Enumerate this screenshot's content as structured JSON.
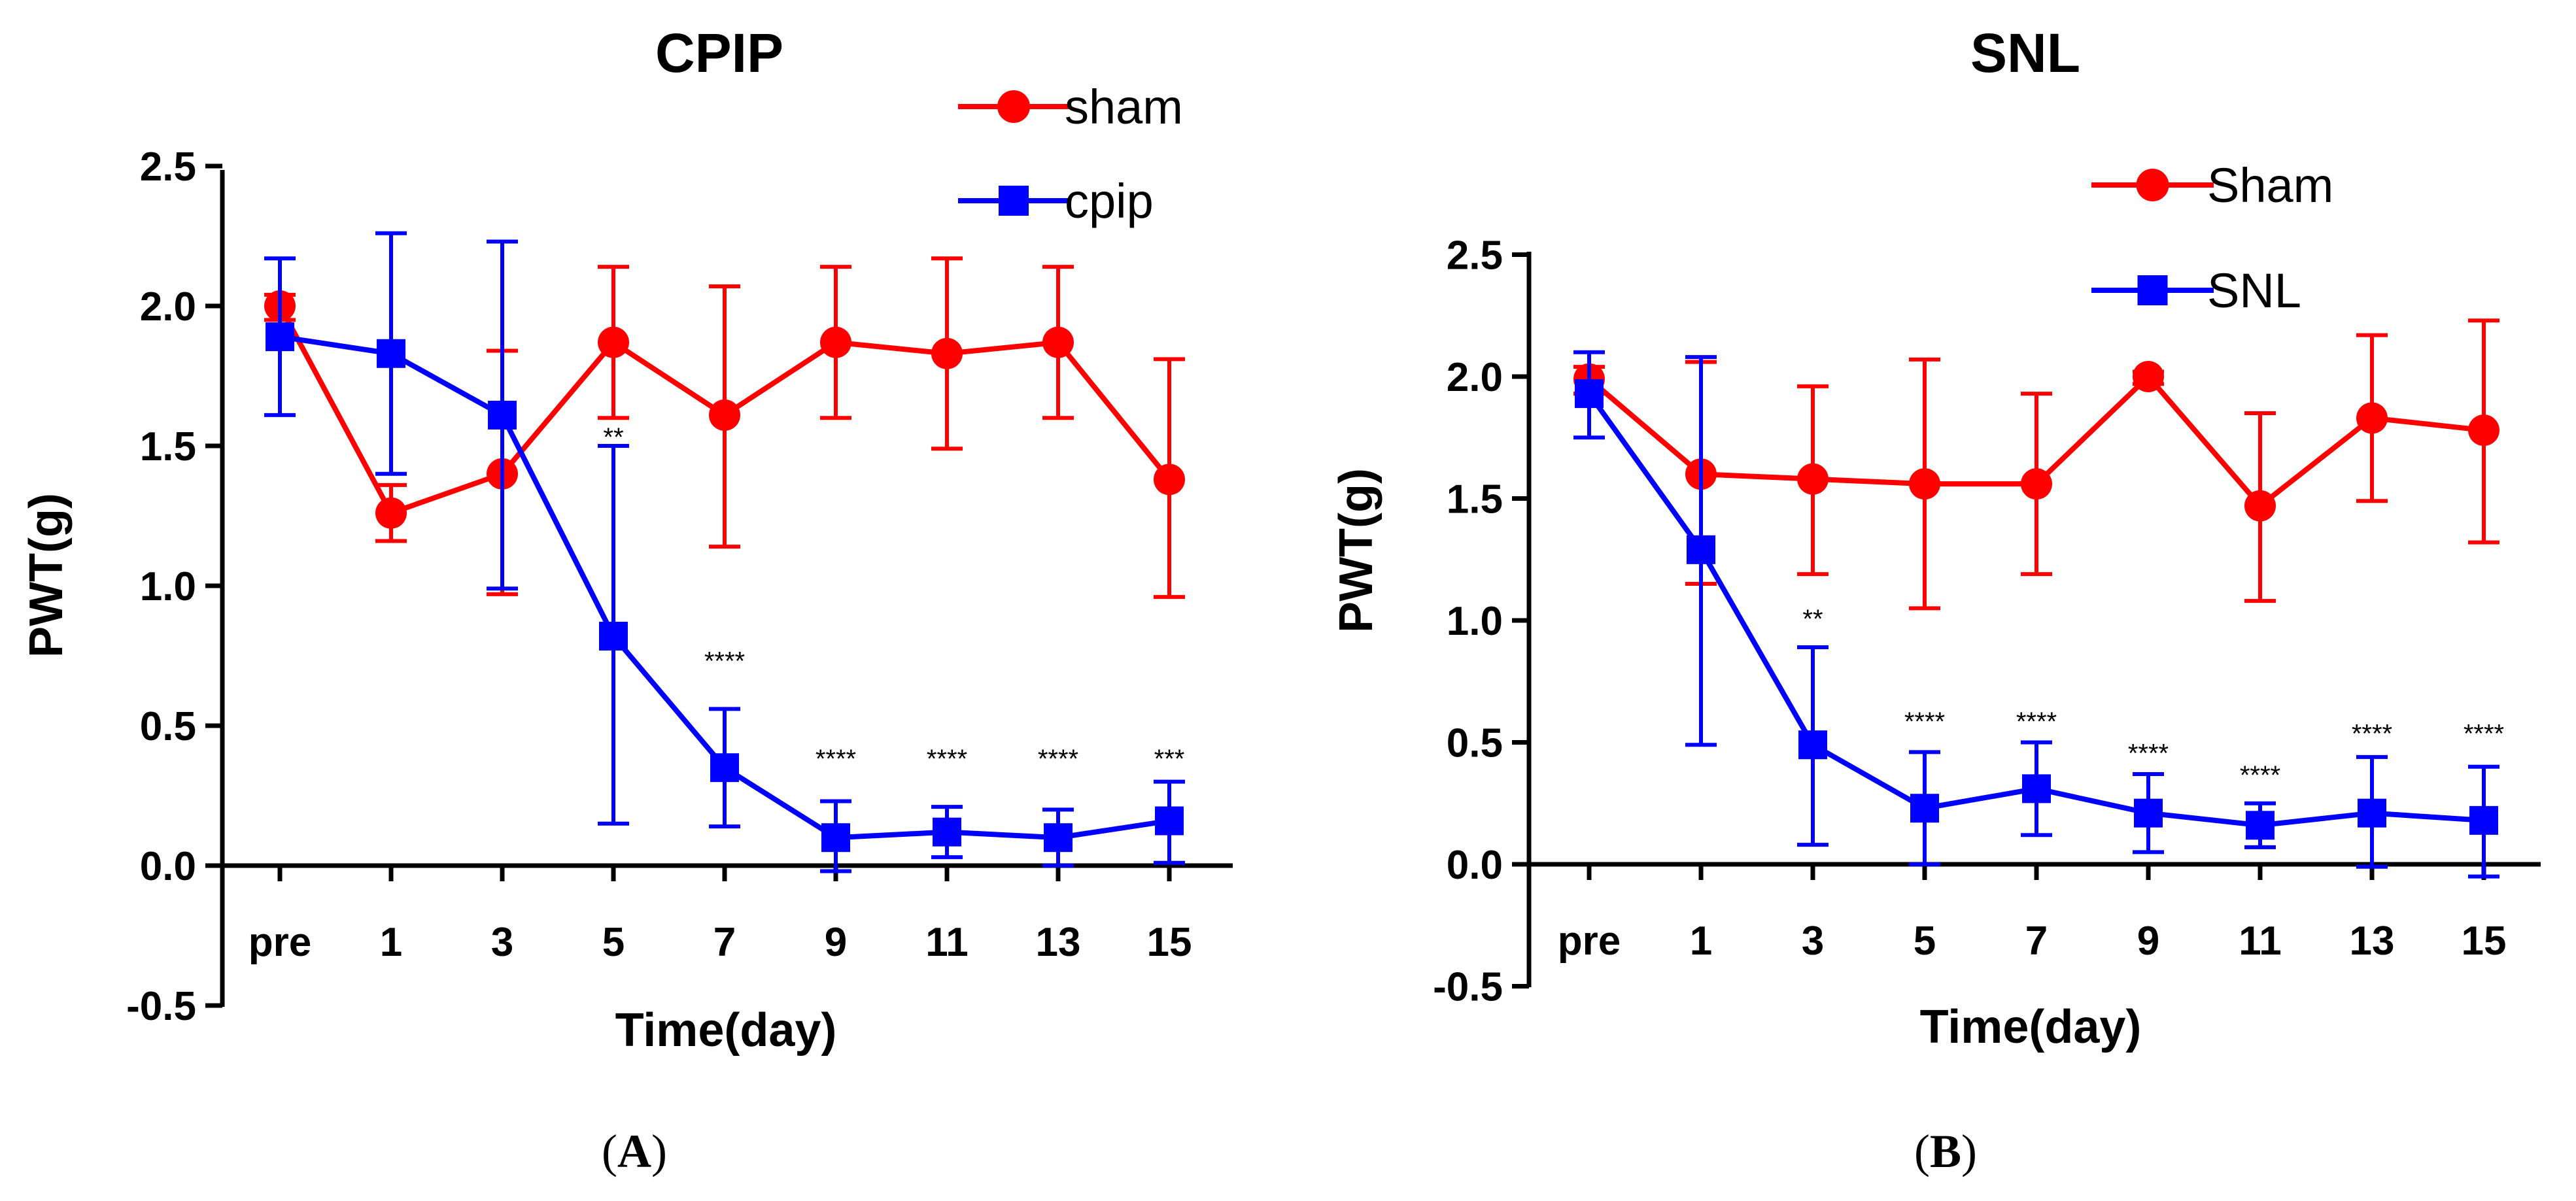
{
  "chart_data": [
    {
      "type": "line",
      "title": "CPIP",
      "xlabel": "Time(day)",
      "ylabel": "PWT(g)",
      "categories": [
        "pre",
        "1",
        "3",
        "5",
        "7",
        "9",
        "11",
        "13",
        "15"
      ],
      "ylim": [
        -0.5,
        2.5
      ],
      "yticks": [
        "-0.5",
        "0.0",
        "0.5",
        "1.0",
        "1.5",
        "2.0",
        "2.5"
      ],
      "ytick_values": [
        -0.5,
        0.0,
        0.5,
        1.0,
        1.5,
        2.0,
        2.5
      ],
      "grid": false,
      "legend_position": "top-right",
      "series": [
        {
          "name": "sham",
          "color": "#ff0000",
          "marker": "circle",
          "values": [
            2.0,
            1.26,
            1.4,
            1.87,
            1.61,
            1.87,
            1.83,
            1.87,
            1.38
          ],
          "err_lo": [
            1.95,
            1.16,
            0.97,
            1.6,
            1.14,
            1.6,
            1.49,
            1.6,
            0.96
          ],
          "err_hi": [
            2.04,
            1.36,
            1.84,
            2.14,
            2.07,
            2.14,
            2.17,
            2.14,
            1.81
          ]
        },
        {
          "name": "cpip",
          "color": "#0000ff",
          "marker": "square",
          "values": [
            1.89,
            1.83,
            1.61,
            0.82,
            0.35,
            0.1,
            0.12,
            0.1,
            0.16
          ],
          "err_lo": [
            1.61,
            1.4,
            0.99,
            0.15,
            0.14,
            -0.02,
            0.03,
            0.0,
            0.01
          ],
          "err_hi": [
            2.17,
            2.26,
            2.23,
            1.5,
            0.56,
            0.23,
            0.21,
            0.2,
            0.3
          ]
        }
      ],
      "annotations": [
        {
          "x": "5",
          "y": 1.5,
          "text": "**"
        },
        {
          "x": "7",
          "y": 0.7,
          "text": "****"
        },
        {
          "x": "9",
          "y": 0.35,
          "text": "****"
        },
        {
          "x": "11",
          "y": 0.35,
          "text": "****"
        },
        {
          "x": "13",
          "y": 0.35,
          "text": "****"
        },
        {
          "x": "15",
          "y": 0.35,
          "text": "***"
        }
      ],
      "panel_label": {
        "open": "(",
        "letter": "A",
        "close": ")"
      }
    },
    {
      "type": "line",
      "title": "SNL",
      "xlabel": "Time(day)",
      "ylabel": "PWT(g)",
      "categories": [
        "pre",
        "1",
        "3",
        "5",
        "7",
        "9",
        "11",
        "13",
        "15"
      ],
      "ylim": [
        -0.5,
        2.5
      ],
      "yticks": [
        "-0.5",
        "0.0",
        "0.5",
        "1.0",
        "1.5",
        "2.0",
        "2.5"
      ],
      "ytick_values": [
        -0.5,
        0.0,
        0.5,
        1.0,
        1.5,
        2.0,
        2.5
      ],
      "grid": false,
      "legend_position": "top-right",
      "series": [
        {
          "name": "Sham",
          "color": "#ff0000",
          "marker": "circle",
          "values": [
            1.99,
            1.6,
            1.58,
            1.56,
            1.56,
            2.0,
            1.47,
            1.83,
            1.78
          ],
          "err_lo": [
            1.93,
            1.15,
            1.19,
            1.05,
            1.19,
            1.97,
            1.08,
            1.49,
            1.32
          ],
          "err_hi": [
            2.04,
            2.06,
            1.96,
            2.07,
            1.93,
            2.02,
            1.85,
            2.17,
            2.23
          ]
        },
        {
          "name": "SNL",
          "color": "#0000ff",
          "marker": "square",
          "values": [
            1.93,
            1.29,
            0.49,
            0.23,
            0.31,
            0.21,
            0.16,
            0.21,
            0.18
          ],
          "err_lo": [
            1.75,
            0.49,
            0.08,
            0.0,
            0.12,
            0.05,
            0.07,
            -0.01,
            -0.05
          ],
          "err_hi": [
            2.1,
            2.08,
            0.89,
            0.46,
            0.5,
            0.37,
            0.25,
            0.44,
            0.4
          ]
        }
      ],
      "annotations": [
        {
          "x": "3",
          "y": 0.97,
          "text": "**"
        },
        {
          "x": "5",
          "y": 0.55,
          "text": "****"
        },
        {
          "x": "7",
          "y": 0.55,
          "text": "****"
        },
        {
          "x": "9",
          "y": 0.42,
          "text": "****"
        },
        {
          "x": "11",
          "y": 0.33,
          "text": "****"
        },
        {
          "x": "13",
          "y": 0.5,
          "text": "****"
        },
        {
          "x": "15",
          "y": 0.5,
          "text": "****"
        }
      ],
      "panel_label": {
        "open": "(",
        "letter": "B",
        "close": ")"
      }
    }
  ]
}
